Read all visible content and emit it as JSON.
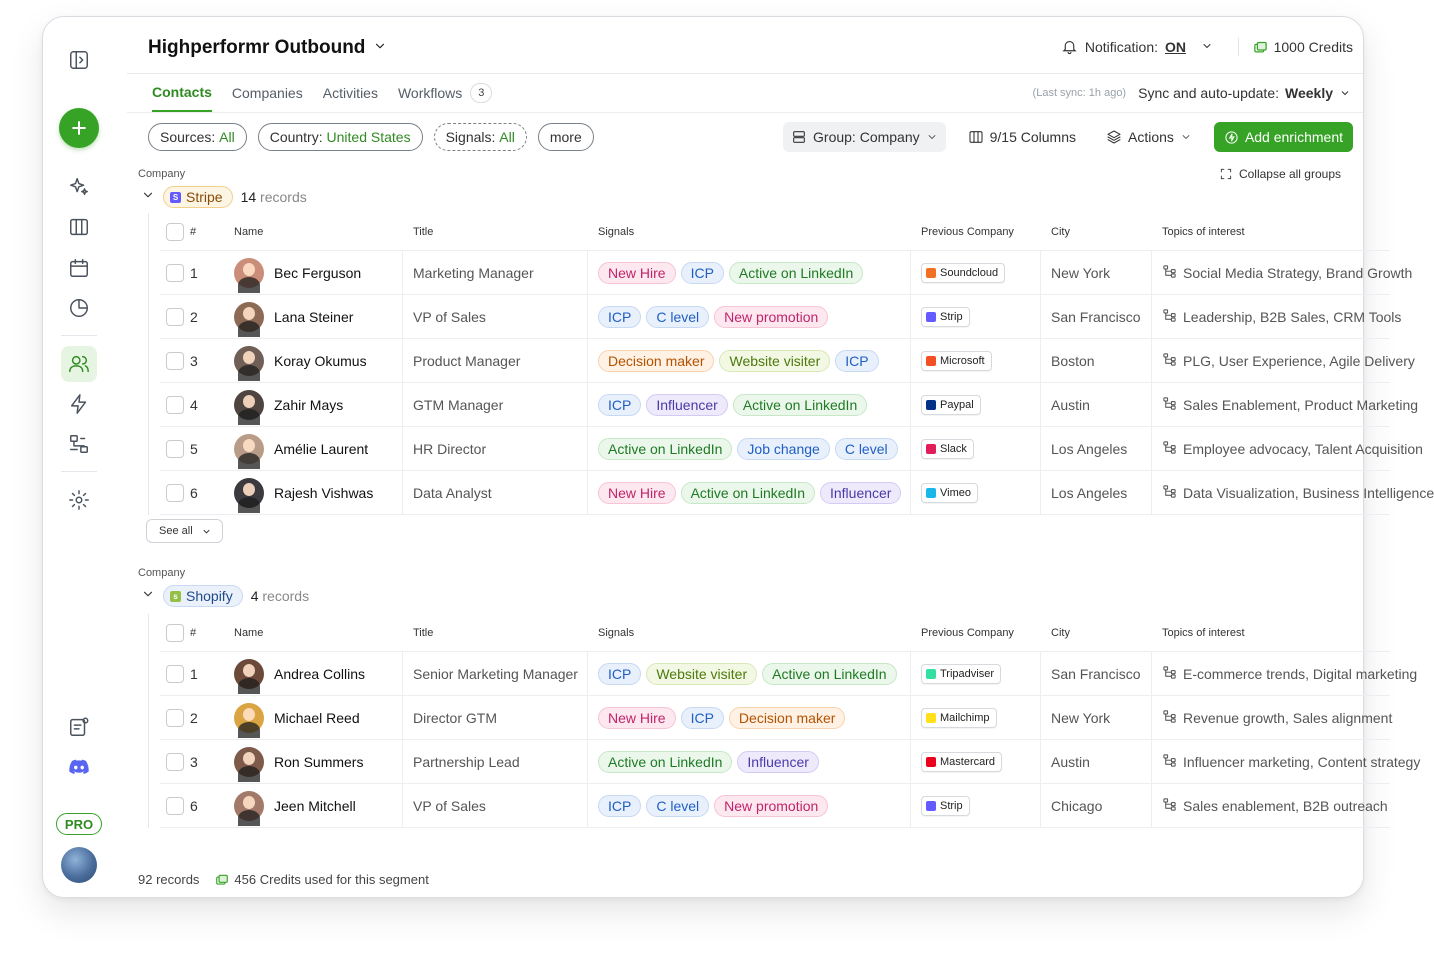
{
  "header": {
    "title": "Highperformr Outbound",
    "notification_label": "Notification:",
    "notification_value": "ON",
    "credits": "1000 Credits"
  },
  "tabs": [
    {
      "label": "Contacts"
    },
    {
      "label": "Companies"
    },
    {
      "label": "Activities"
    },
    {
      "label": "Workflows",
      "count": "3"
    }
  ],
  "sync": {
    "last": "(Last sync: 1h ago)",
    "label": "Sync and auto-update:",
    "value": "Weekly"
  },
  "filters": [
    {
      "label": "Sources:",
      "value": "All"
    },
    {
      "label": "Country:",
      "value": "United States"
    },
    {
      "label": "Signals:",
      "value": "All"
    },
    {
      "label": "more"
    }
  ],
  "toolbar": {
    "group": "Group: Company",
    "columns": "9/15 Columns",
    "actions": "Actions",
    "add_enrichment": "Add enrichment",
    "collapse_all": "Collapse all groups"
  },
  "columns": {
    "num": "#",
    "name": "Name",
    "title": "Title",
    "signals": "Signals",
    "prev": "Previous Company",
    "city": "City",
    "topics": "Topics of interest"
  },
  "groups": [
    {
      "group_label": "Company",
      "company": "Stripe",
      "records_num": "14",
      "records_word": "records",
      "see_all": "See all",
      "rows": [
        {
          "num": "1",
          "name": "Bec Ferguson",
          "title": "Marketing Manager",
          "signals": [
            "New Hire",
            "ICP",
            "Active on LinkedIn"
          ],
          "prev": "Soundcloud",
          "city": "New York",
          "topics": "Social Media Strategy, Brand Growth"
        },
        {
          "num": "2",
          "name": "Lana Steiner",
          "title": "VP of Sales",
          "signals": [
            "ICP",
            "C level",
            "New promotion"
          ],
          "prev": "Strip",
          "city": "San Francisco",
          "topics": "Leadership, B2B Sales, CRM Tools"
        },
        {
          "num": "3",
          "name": "Koray Okumus",
          "title": "Product Manager",
          "signals": [
            "Decision maker",
            "Website visiter",
            "ICP"
          ],
          "prev": "Microsoft",
          "city": "Boston",
          "topics": "PLG, User Experience, Agile Delivery"
        },
        {
          "num": "4",
          "name": "Zahir Mays",
          "title": "GTM Manager",
          "signals": [
            "ICP",
            "Influencer",
            "Active on LinkedIn"
          ],
          "prev": "Paypal",
          "city": "Austin",
          "topics": "Sales Enablement, Product Marketing"
        },
        {
          "num": "5",
          "name": "Amélie Laurent",
          "title": "HR Director",
          "signals": [
            "Active on LinkedIn",
            "Job change",
            "C level"
          ],
          "prev": "Slack",
          "city": "Los Angeles",
          "topics": "Employee advocacy, Talent Acquisition"
        },
        {
          "num": "6",
          "name": "Rajesh Vishwas",
          "title": "Data Analyst",
          "signals": [
            "New Hire",
            "Active on LinkedIn",
            "Influencer"
          ],
          "prev": "Vimeo",
          "city": "Los Angeles",
          "topics": "Data Visualization, Business Intelligence"
        }
      ]
    },
    {
      "group_label": "Company",
      "company": "Shopify",
      "records_num": "4",
      "records_word": "records",
      "rows": [
        {
          "num": "1",
          "name": "Andrea Collins",
          "title": "Senior Marketing Manager",
          "signals": [
            "ICP",
            "Website visiter",
            "Active on LinkedIn"
          ],
          "prev": "Tripadviser",
          "city": "San Francisco",
          "topics": "E-commerce trends, Digital marketing"
        },
        {
          "num": "2",
          "name": "Michael Reed",
          "title": "Director GTM",
          "signals": [
            "New Hire",
            "ICP",
            "Decision maker"
          ],
          "prev": "Mailchimp",
          "city": "New York",
          "topics": "Revenue growth, Sales alignment"
        },
        {
          "num": "3",
          "name": "Ron Summers",
          "title": "Partnership Lead",
          "signals": [
            "Active on LinkedIn",
            "Influencer"
          ],
          "prev": "Mastercard",
          "city": "Austin",
          "topics": "Influencer marketing, Content strategy"
        },
        {
          "num": "6",
          "name": "Jeen Mitchell",
          "title": "VP of Sales",
          "signals": [
            "ICP",
            "C level",
            "New promotion"
          ],
          "prev": "Strip",
          "city": "Chicago",
          "topics": "Sales enablement, B2B outreach"
        }
      ]
    }
  ],
  "footer": {
    "records": "92 records",
    "credits_used": "456 Credits used for this segment"
  },
  "sidebar": {
    "pro": "PRO"
  },
  "signal_colors": {
    "New Hire": "pink",
    "New promotion": "pink",
    "ICP": "blue",
    "C level": "blue",
    "Job change": "blue",
    "Active on LinkedIn": "green",
    "Decision maker": "orange",
    "Website visiter": "lime",
    "Influencer": "purple"
  },
  "company_colors": {
    "Soundcloud": "#f26f23",
    "Strip": "#635bff",
    "Microsoft": "#f25022",
    "Paypal": "#003087",
    "Slack": "#e01e5a",
    "Vimeo": "#1ab7ea",
    "Tripadviser": "#34e0a1",
    "Mailchimp": "#ffe01b",
    "Mastercard": "#eb001b"
  },
  "avatar_colors": [
    "#c98d7a",
    "#8c6a55",
    "#6f5f56",
    "#4e4440",
    "#b89c88",
    "#3c3a3f",
    "#6b4a3a",
    "#d9a441",
    "#7d5a4a",
    "#a37a6a"
  ],
  "accent": "#36a326"
}
